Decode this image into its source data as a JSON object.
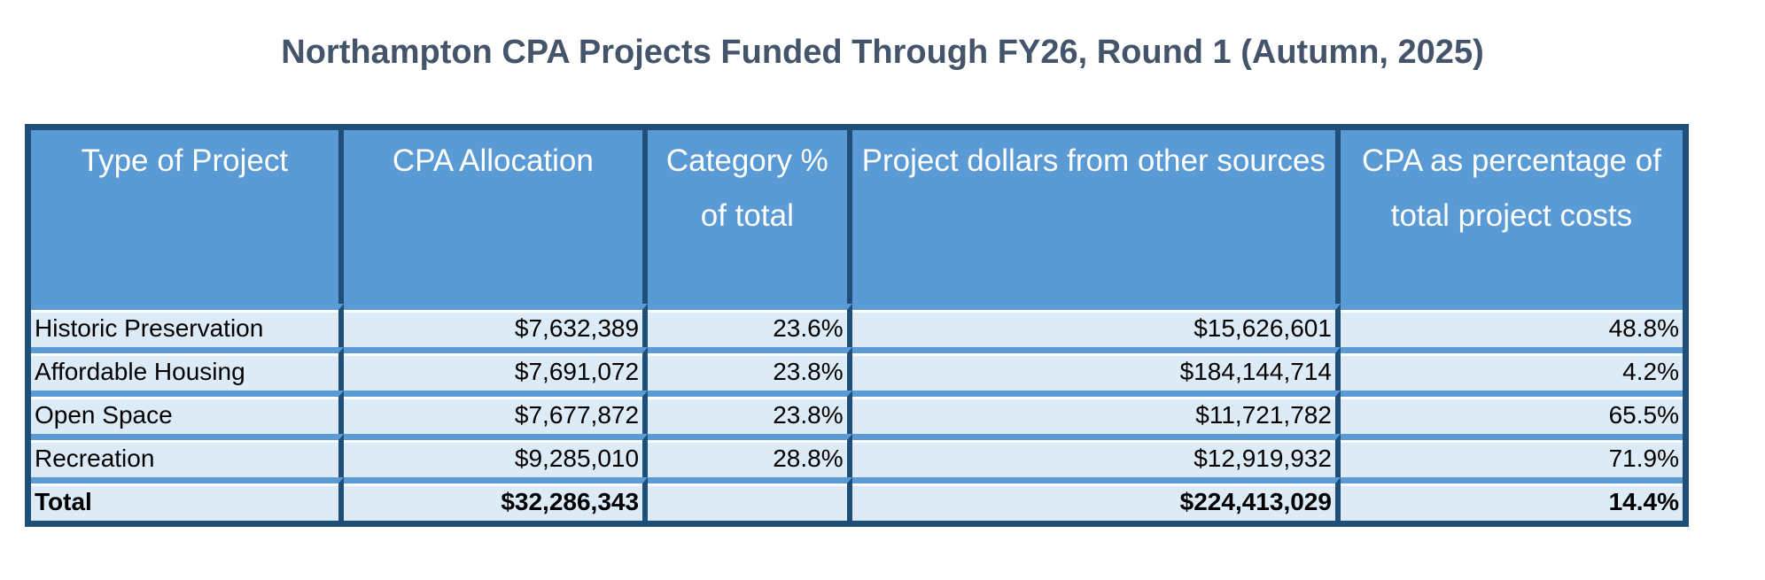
{
  "title": "Northampton CPA Projects Funded Through FY26, Round 1 (Autumn, 2025)",
  "colors": {
    "header_bg": "#5b9bd5",
    "border": "#1f4e79",
    "row_bg": "#ddebf7",
    "title": "#44546a"
  },
  "table": {
    "headers": [
      "Type of Project",
      "CPA Allocation",
      "Category % of total",
      "Project dollars from other sources",
      "CPA as percentage of total project costs"
    ],
    "rows": [
      [
        "Historic Preservation",
        "$7,632,389",
        "23.6%",
        "$15,626,601",
        "48.8%"
      ],
      [
        "Affordable Housing",
        "$7,691,072",
        "23.8%",
        "$184,144,714",
        "4.2%"
      ],
      [
        "Open Space",
        "$7,677,872",
        "23.8%",
        "$11,721,782",
        "65.5%"
      ],
      [
        "Recreation",
        "$9,285,010",
        "28.8%",
        "$12,919,932",
        "71.9%"
      ]
    ],
    "total": [
      "Total",
      "$32,286,343",
      "",
      "$224,413,029",
      "14.4%"
    ]
  }
}
